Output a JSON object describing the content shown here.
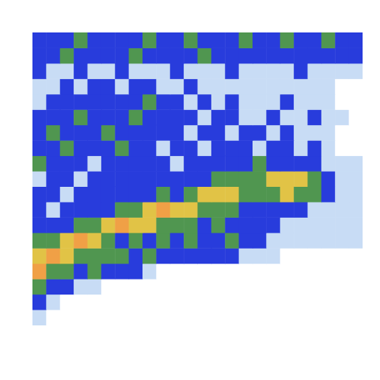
{
  "chart_data": {
    "type": "heatmap",
    "x": [
      0.5,
      1.5,
      2.5,
      3.5,
      4.5,
      5.5,
      6.5,
      7.5,
      8.5,
      9.5,
      10.5,
      11.5,
      12.5,
      13.5,
      14.5,
      15.5,
      16.5,
      17.5,
      18.5,
      19.5,
      20.5,
      21.5,
      22.5,
      23.5
    ],
    "y": [
      0.5,
      1.5,
      2.5,
      3.5,
      4.5,
      5.5,
      6.5,
      7.5,
      8.5,
      9.5,
      10.5,
      11.5,
      12.5,
      13.5,
      14.5,
      15.5,
      16.5,
      17.5,
      18.5,
      19.5
    ],
    "z": [
      [
        0,
        0,
        0,
        0,
        0,
        0,
        0,
        0,
        0,
        0,
        0,
        0,
        0,
        0,
        0,
        0,
        0,
        0,
        0,
        0,
        0,
        0,
        0,
        0
      ],
      [
        0.5,
        0,
        0,
        0,
        0,
        0,
        0,
        0,
        0,
        0,
        0,
        0,
        0,
        0,
        0,
        0,
        0,
        0,
        0,
        0,
        0,
        0,
        0,
        0
      ],
      [
        1,
        0.5,
        0,
        0,
        0,
        0,
        0,
        0,
        0,
        0,
        0,
        0,
        0,
        0,
        0,
        0,
        0,
        0,
        0,
        0,
        0,
        0,
        0,
        0
      ],
      [
        2,
        1,
        1,
        0.5,
        0.5,
        0,
        0,
        0,
        0,
        0,
        0,
        0,
        0,
        0,
        0,
        0,
        0,
        0,
        0,
        0,
        0,
        0,
        0,
        0
      ],
      [
        4,
        2,
        2,
        1,
        2,
        1,
        1,
        1,
        0.5,
        0,
        0,
        0,
        0,
        0,
        0,
        0,
        0,
        0,
        0,
        0,
        0,
        0,
        0,
        0
      ],
      [
        3,
        4,
        3,
        2,
        2,
        2,
        2,
        1,
        2,
        1,
        1,
        1,
        1,
        1,
        1,
        0.5,
        0.5,
        0.5,
        0,
        0,
        0,
        0,
        0,
        0
      ],
      [
        2,
        2,
        3,
        4,
        3,
        2,
        1,
        2,
        1,
        2,
        1,
        2,
        1,
        1,
        2,
        1,
        1,
        0.5,
        0.5,
        0.5,
        0.5,
        0.5,
        0.5,
        0.5
      ],
      [
        1,
        1,
        1,
        2,
        2,
        3,
        4,
        3,
        3,
        2,
        2,
        2,
        1,
        2,
        1,
        1,
        1,
        1,
        0.5,
        0.5,
        0.5,
        0.5,
        0.5,
        0.5
      ],
      [
        1,
        0.5,
        1,
        1,
        1,
        1,
        2,
        2,
        3,
        4,
        3,
        3,
        2,
        2,
        2,
        1,
        1,
        1,
        1,
        1,
        0.5,
        0.5,
        0.5,
        0.5
      ],
      [
        1,
        1,
        0.5,
        1,
        1,
        1,
        1,
        1,
        1,
        2,
        1,
        2,
        3,
        3,
        3,
        2,
        2,
        2,
        3,
        2,
        2,
        1,
        0.5,
        0.5
      ],
      [
        0.5,
        1,
        1,
        0.5,
        1,
        1,
        1,
        1,
        1,
        1,
        1,
        1,
        1,
        2,
        2,
        2,
        2,
        3,
        3,
        3,
        2,
        1,
        0.5,
        0.5
      ],
      [
        2,
        1,
        1,
        1,
        0.5,
        1,
        1,
        1,
        1,
        1,
        0.5,
        1,
        1,
        1,
        1,
        1,
        2,
        1,
        1,
        1,
        1,
        0.5,
        0.5,
        0.5
      ],
      [
        1,
        1,
        2,
        1,
        1,
        1,
        2,
        1,
        1,
        0.5,
        1,
        1,
        0.5,
        1,
        1,
        1,
        0.5,
        1,
        1,
        0.5,
        1,
        0.5,
        0,
        0
      ],
      [
        1,
        2,
        1,
        1,
        1,
        2,
        1,
        1,
        1,
        1,
        1,
        0.5,
        1,
        1,
        0.5,
        1,
        1,
        0.5,
        1,
        0.5,
        0.5,
        0.5,
        0,
        0
      ],
      [
        1,
        1,
        1,
        2,
        1,
        1,
        1,
        2,
        1,
        1,
        1,
        1,
        0.5,
        1,
        1,
        0.5,
        0.5,
        1,
        0.5,
        0.5,
        1,
        0.5,
        0.5,
        0
      ],
      [
        0.5,
        1,
        1,
        1,
        1,
        1,
        1,
        1,
        2,
        1,
        1,
        0.5,
        1,
        0.5,
        1,
        0.5,
        0.5,
        0.5,
        1,
        0.5,
        0.5,
        0.5,
        0,
        0
      ],
      [
        0.5,
        0.5,
        1,
        0.5,
        1,
        1,
        0.5,
        1,
        1,
        0.5,
        0.5,
        1,
        0.5,
        0.5,
        0.5,
        0.5,
        0.5,
        0.5,
        0.5,
        0.5,
        0.5,
        0.5,
        0,
        0
      ],
      [
        1,
        0.5,
        0.5,
        1,
        0.5,
        0.5,
        1,
        0.5,
        0.5,
        0.5,
        1,
        0.5,
        0.5,
        0.5,
        1,
        0.5,
        0.5,
        0.5,
        0.5,
        1,
        0.5,
        0.5,
        0.5,
        0.5
      ],
      [
        1,
        1,
        2,
        1,
        1,
        1,
        1,
        2,
        1,
        1,
        1,
        1,
        2,
        1,
        1,
        1,
        1,
        1,
        1,
        1,
        1,
        1,
        1,
        1
      ],
      [
        1,
        1,
        1,
        2,
        1,
        1,
        1,
        1,
        2,
        1,
        1,
        2,
        1,
        1,
        1,
        2,
        1,
        1,
        2,
        1,
        1,
        2,
        1,
        1
      ]
    ],
    "xlim": [
      0,
      24
    ],
    "ylim": [
      0,
      20
    ],
    "xticks": [],
    "yticks": [],
    "zlim": [
      0,
      4
    ],
    "tick_labels": false
  }
}
